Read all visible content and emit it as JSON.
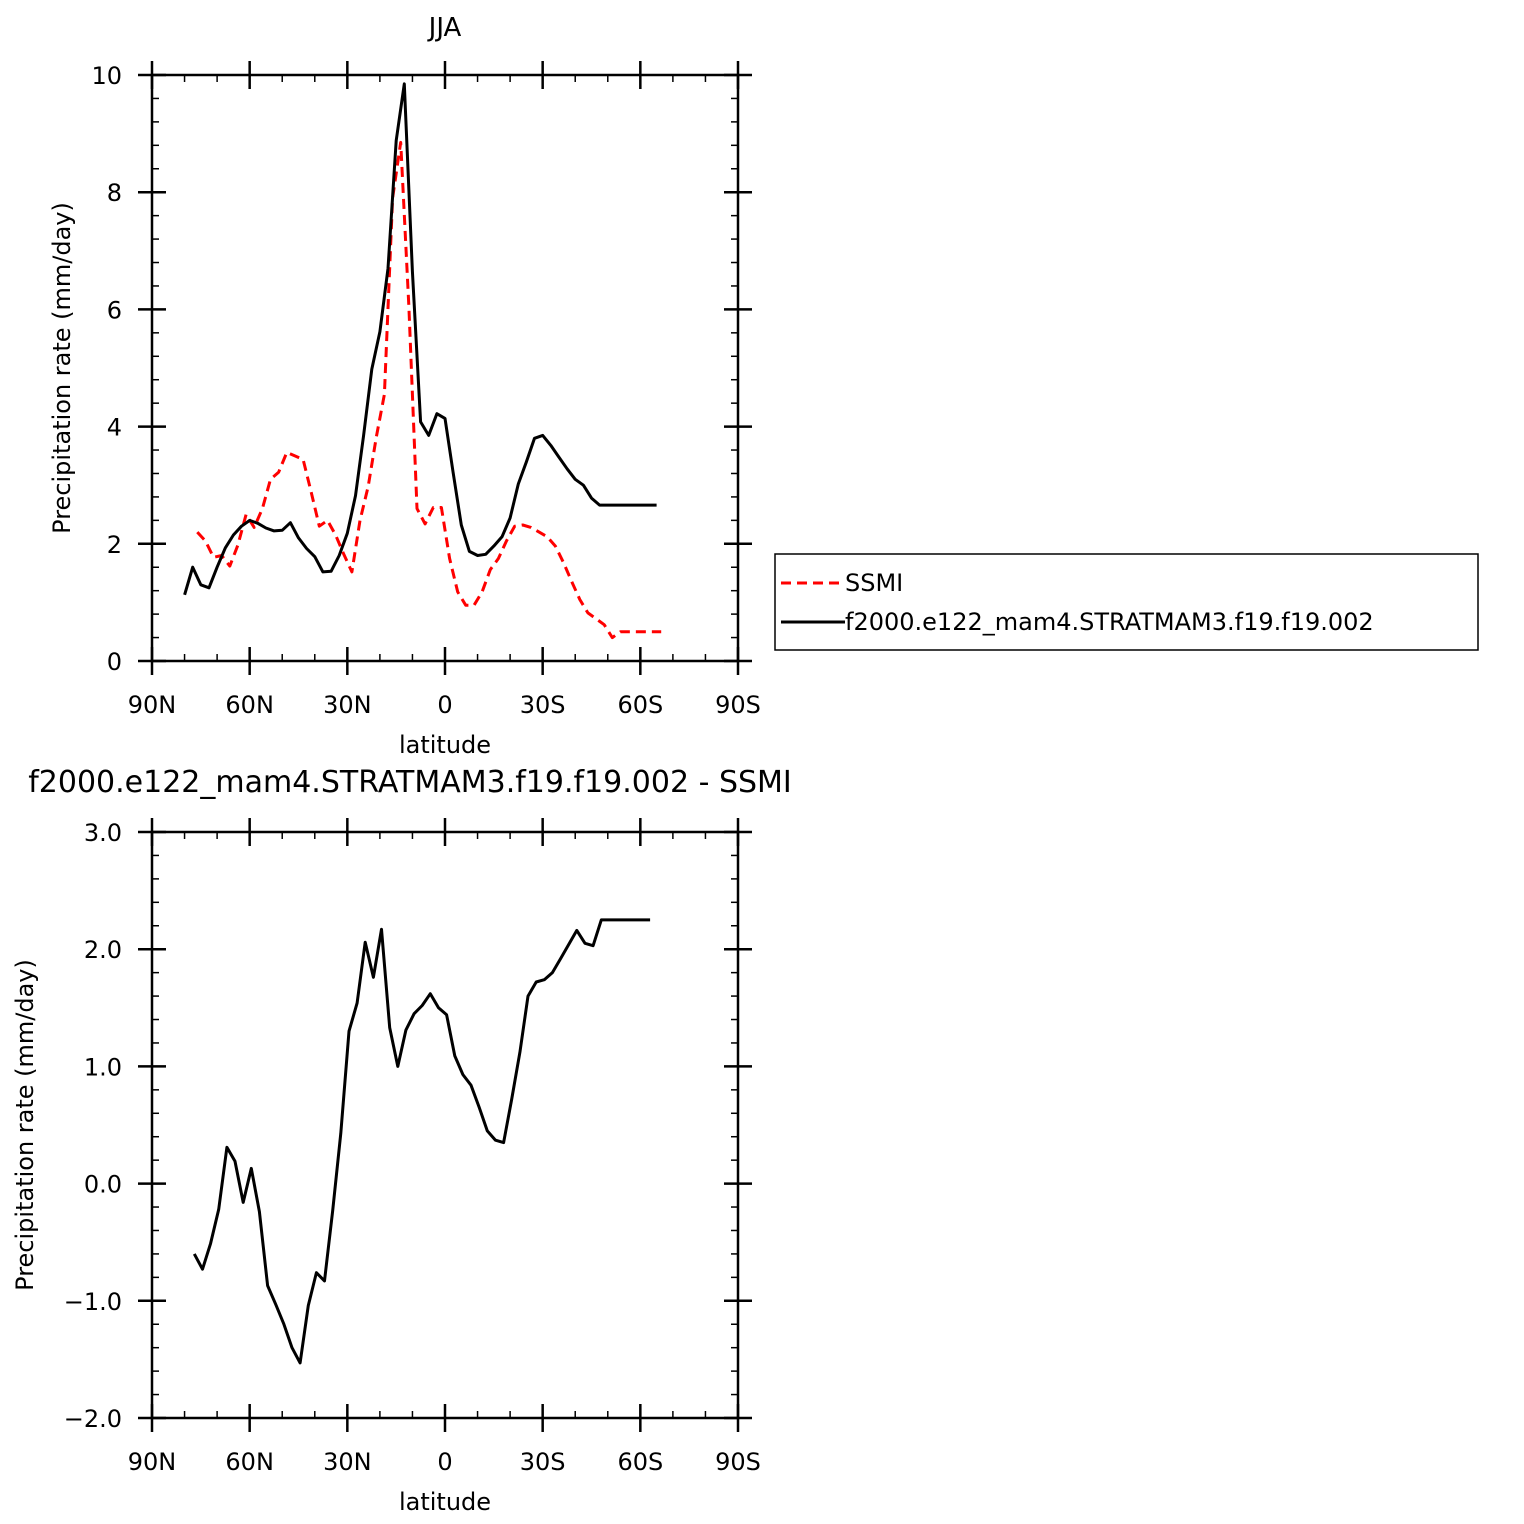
{
  "chart_data": [
    {
      "type": "line",
      "title": "JJA",
      "xlabel": "latitude",
      "ylabel": "Precipitation rate (mm/day)",
      "xlim": [
        -90,
        90
      ],
      "ylim": [
        0,
        10
      ],
      "xticks": [
        {
          "value": -90,
          "label": "90N"
        },
        {
          "value": -60,
          "label": "60N"
        },
        {
          "value": -30,
          "label": "30N"
        },
        {
          "value": 0,
          "label": "0"
        },
        {
          "value": 30,
          "label": "30S"
        },
        {
          "value": 60,
          "label": "60S"
        },
        {
          "value": 90,
          "label": "90S"
        }
      ],
      "yticks": [
        {
          "value": 0,
          "label": "0"
        },
        {
          "value": 2,
          "label": "2"
        },
        {
          "value": 4,
          "label": "4"
        },
        {
          "value": 6,
          "label": "6"
        },
        {
          "value": 8,
          "label": "8"
        },
        {
          "value": 10,
          "label": "10"
        }
      ],
      "legend_position": "right",
      "series": [
        {
          "name": "SSMI",
          "color": "#ff0000",
          "dash": "dashed",
          "x": [
            -76.1,
            -73.6,
            -71.1,
            -68.6,
            -66.1,
            -63.6,
            -61.1,
            -58.6,
            -56.1,
            -53.6,
            -51.1,
            -48.6,
            -46.1,
            -43.6,
            -41.1,
            -38.6,
            -36.1,
            -33.6,
            -31.1,
            -28.6,
            -26.1,
            -23.6,
            -21.1,
            -18.6,
            -16.1,
            -13.6,
            -11.1,
            -8.6,
            -6.1,
            -3.6,
            -1.1,
            1.4,
            3.9,
            6.4,
            8.9,
            11.4,
            13.9,
            16.4,
            18.9,
            21.4,
            23.9,
            26.4,
            28.9,
            31.4,
            33.9,
            36.4,
            38.9,
            41.4,
            43.9,
            46.4,
            48.9,
            51.4,
            53.9,
            56.4,
            58.9,
            61.4,
            63.9,
            66.4
          ],
          "values": [
            2.2,
            2.05,
            1.77,
            1.8,
            1.62,
            1.98,
            2.5,
            2.28,
            2.6,
            3.1,
            3.22,
            3.56,
            3.5,
            3.44,
            2.88,
            2.3,
            2.4,
            2.15,
            1.82,
            1.52,
            2.4,
            2.98,
            3.82,
            4.55,
            7.9,
            8.85,
            6.04,
            2.6,
            2.34,
            2.62,
            2.62,
            1.75,
            1.18,
            0.95,
            0.95,
            1.18,
            1.56,
            1.75,
            2.05,
            2.3,
            2.32,
            2.28,
            2.2,
            2.12,
            1.96,
            1.68,
            1.36,
            1.05,
            0.82,
            0.72,
            0.62,
            0.4,
            0.5,
            0.5,
            0.5,
            0.5,
            0.5,
            0.5
          ]
        },
        {
          "name": "f2000.e122_mam4.STRATMAM3.f19.f19.002",
          "color": "#000000",
          "dash": "solid",
          "x": [
            -80,
            -77.5,
            -75,
            -72.5,
            -70,
            -67.5,
            -65,
            -62.5,
            -60,
            -57.5,
            -55,
            -52.5,
            -50,
            -47.5,
            -45,
            -42.5,
            -40,
            -37.5,
            -35,
            -32.5,
            -30,
            -27.5,
            -25,
            -22.5,
            -20,
            -17.5,
            -15,
            -12.5,
            -10,
            -7.5,
            -5,
            -2.5,
            0,
            2.5,
            5,
            7.5,
            10,
            12.5,
            15,
            17.5,
            20,
            22.5,
            25,
            27.5,
            30,
            32.5,
            35,
            37.5,
            40,
            42.5,
            45,
            47.5,
            50,
            52.5,
            55,
            57.5,
            60,
            62.5,
            65
          ],
          "values": [
            1.13,
            1.6,
            1.3,
            1.25,
            1.6,
            1.93,
            2.15,
            2.3,
            2.4,
            2.35,
            2.27,
            2.22,
            2.23,
            2.36,
            2.1,
            1.92,
            1.78,
            1.52,
            1.53,
            1.8,
            2.18,
            2.82,
            3.85,
            4.98,
            5.62,
            6.7,
            8.88,
            9.85,
            6.65,
            4.08,
            3.85,
            4.22,
            4.14,
            3.22,
            2.32,
            1.87,
            1.8,
            1.82,
            1.96,
            2.12,
            2.44,
            3.02,
            3.4,
            3.8,
            3.85,
            3.68,
            3.48,
            3.28,
            3.1,
            3.0,
            2.78,
            2.66,
            2.66,
            2.66,
            2.66,
            2.66,
            2.66,
            2.66,
            2.66
          ]
        }
      ]
    },
    {
      "type": "line",
      "title": "f2000.e122_mam4.STRATMAM3.f19.f19.002 - SSMI",
      "xlabel": "latitude",
      "ylabel": "Precipitation rate (mm/day)",
      "xlim": [
        -90,
        90
      ],
      "ylim": [
        -2,
        3
      ],
      "xticks": [
        {
          "value": -90,
          "label": "90N"
        },
        {
          "value": -60,
          "label": "60N"
        },
        {
          "value": -30,
          "label": "30N"
        },
        {
          "value": 0,
          "label": "0"
        },
        {
          "value": 30,
          "label": "30S"
        },
        {
          "value": 60,
          "label": "60S"
        },
        {
          "value": 90,
          "label": "90S"
        }
      ],
      "yticks": [
        {
          "value": -2,
          "label": "−2.0"
        },
        {
          "value": -1,
          "label": "−1.0"
        },
        {
          "value": 0,
          "label": "0.0"
        },
        {
          "value": 1,
          "label": "1.0"
        },
        {
          "value": 2,
          "label": "2.0"
        },
        {
          "value": 3,
          "label": "3.0"
        }
      ],
      "series": [
        {
          "color": "#000000",
          "dash": "solid",
          "x": [
            -77,
            -74.5,
            -72,
            -69.5,
            -67,
            -64.5,
            -62,
            -59.5,
            -57,
            -54.5,
            -52,
            -49.5,
            -47,
            -44.5,
            -42,
            -39.5,
            -37,
            -34.5,
            -32,
            -29.5,
            -27,
            -24.5,
            -22,
            -19.5,
            -17,
            -14.5,
            -12,
            -9.5,
            -7,
            -4.5,
            -2,
            0.5,
            3,
            5.5,
            8,
            10.5,
            13,
            15.5,
            18,
            20.5,
            23,
            25.5,
            28,
            30.5,
            33,
            35.5,
            38,
            40.5,
            43,
            45.5,
            48,
            50.5,
            53,
            55.5,
            58,
            60.5,
            63
          ],
          "values": [
            -0.6,
            -0.73,
            -0.51,
            -0.22,
            0.31,
            0.19,
            -0.16,
            0.13,
            -0.24,
            -0.87,
            -1.03,
            -1.2,
            -1.4,
            -1.53,
            -1.04,
            -0.76,
            -0.83,
            -0.23,
            0.43,
            1.3,
            1.54,
            2.06,
            1.76,
            2.17,
            1.33,
            1.0,
            1.31,
            1.45,
            1.52,
            1.62,
            1.5,
            1.44,
            1.09,
            0.93,
            0.84,
            0.65,
            0.45,
            0.37,
            0.35,
            0.72,
            1.12,
            1.6,
            1.72,
            1.74,
            1.8,
            1.92,
            2.04,
            2.16,
            2.05,
            2.03,
            2.25,
            2.25,
            2.25,
            2.25,
            2.25,
            2.25,
            2.25
          ]
        }
      ]
    }
  ]
}
